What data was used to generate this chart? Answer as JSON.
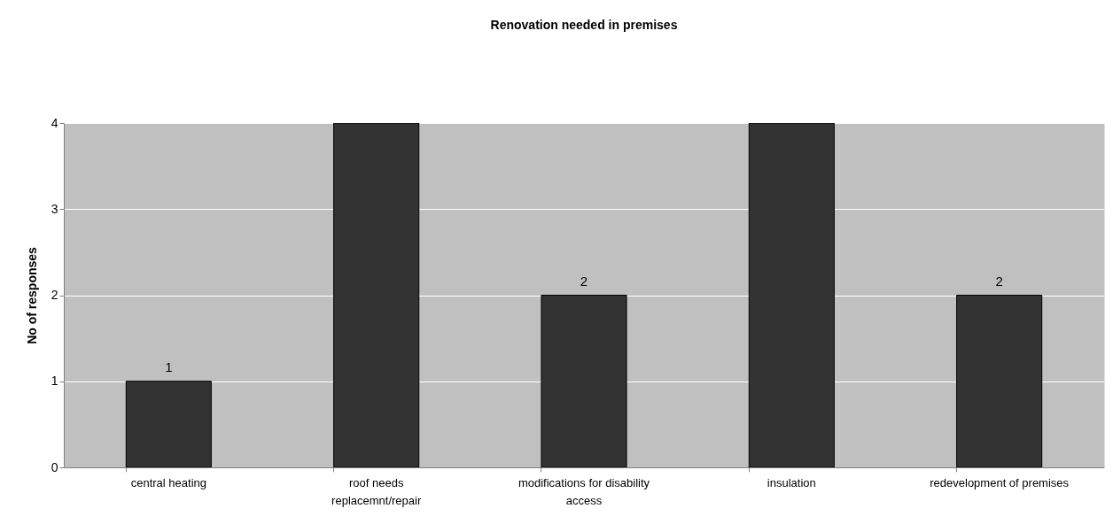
{
  "chart_data": {
    "type": "bar",
    "title": "Renovation needed in premises",
    "ylabel": "No of responses",
    "categories": [
      "central heating",
      "roof needs\nreplacemnt/repair",
      "modifications for disability\naccess",
      "insulation",
      "redevelopment of premises"
    ],
    "values": [
      1,
      4,
      2,
      4,
      2
    ],
    "value_labels": [
      "1",
      null,
      "2",
      null,
      "2"
    ],
    "color": "#333333",
    "ylim": [
      0,
      4
    ],
    "yticks": [
      0,
      1,
      2,
      3,
      4
    ],
    "grid": "y"
  }
}
